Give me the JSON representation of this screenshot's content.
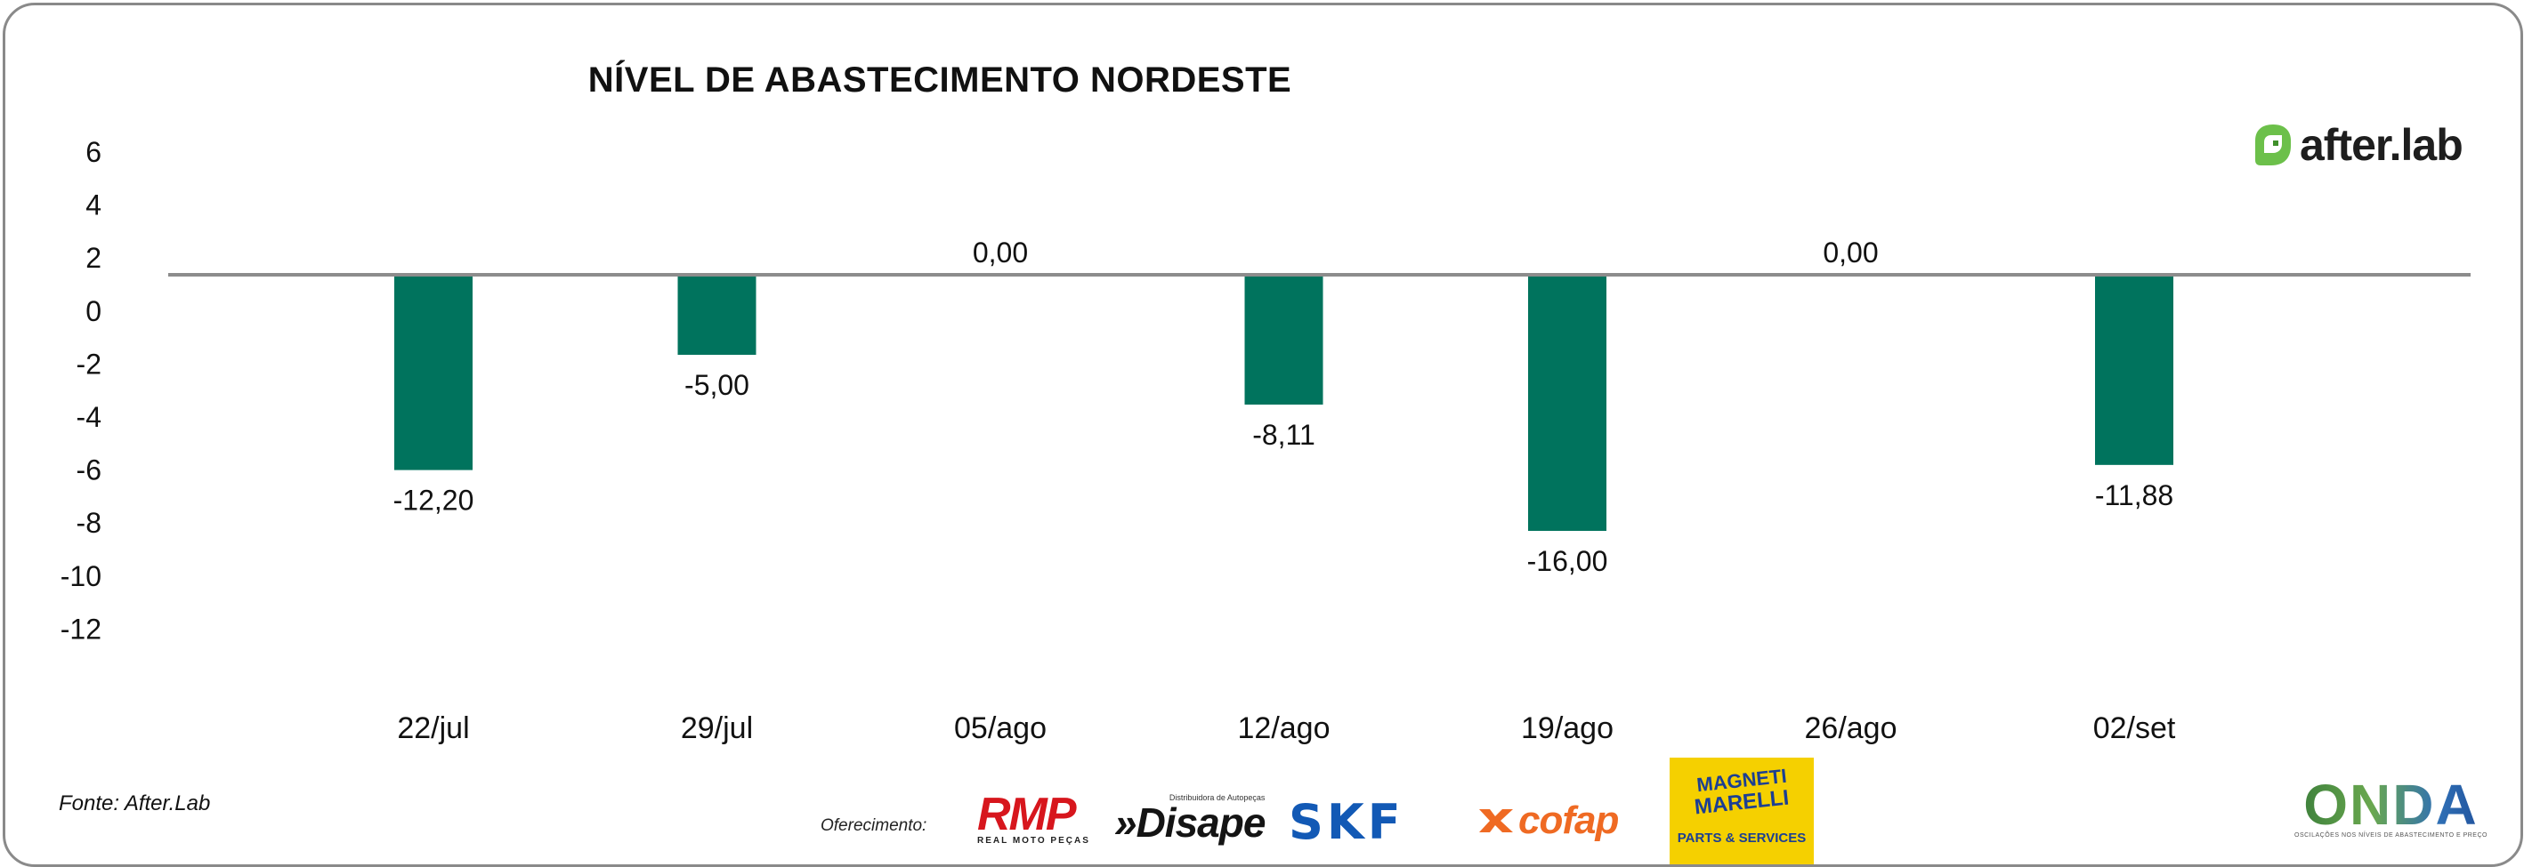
{
  "chart_data": {
    "type": "bar",
    "title": "NÍVEL DE ABASTECIMENTO NORDESTE",
    "categories": [
      "22/jul",
      "29/jul",
      "05/ago",
      "12/ago",
      "19/ago",
      "26/ago",
      "02/set"
    ],
    "series": [
      {
        "values": [
          -12.2,
          -5.0,
          0.0,
          -8.11,
          -16.0,
          0.0,
          -11.88
        ],
        "data_labels": [
          "-12,20",
          "-5,00",
          "0,00",
          "-8,11",
          "-16,00",
          "0,00",
          "-11,88"
        ],
        "color": "#00735d"
      }
    ],
    "y_ticks": [
      "6",
      "4",
      "2",
      "0",
      "-2",
      "-4",
      "-6",
      "-8",
      "-10",
      "-12"
    ],
    "grid": false,
    "legend": "none",
    "baseline_color": "#8c8c8c"
  },
  "footer": {
    "source": "Fonte: After.Lab",
    "sponsor_label": "Oferecimento:"
  },
  "brand": {
    "afterlab": "after.lab",
    "afterlab_color": "#6cc04a"
  },
  "sponsors": {
    "rmp": "RMP",
    "rmp_sub": "REAL MOTO PEÇAS",
    "disape": "»Disape",
    "disape_sub": "Distribuidora de Autopeças",
    "skf": "SKF",
    "cofap": "cofap",
    "magneti_1": "MAGNETI",
    "magneti_2": "MARELLI",
    "magneti_3": "PARTS & SERVICES",
    "onda": "ONDA",
    "onda_sub": "OSCILAÇÕES NOS NÍVEIS DE ABASTECIMENTO E PREÇO"
  }
}
